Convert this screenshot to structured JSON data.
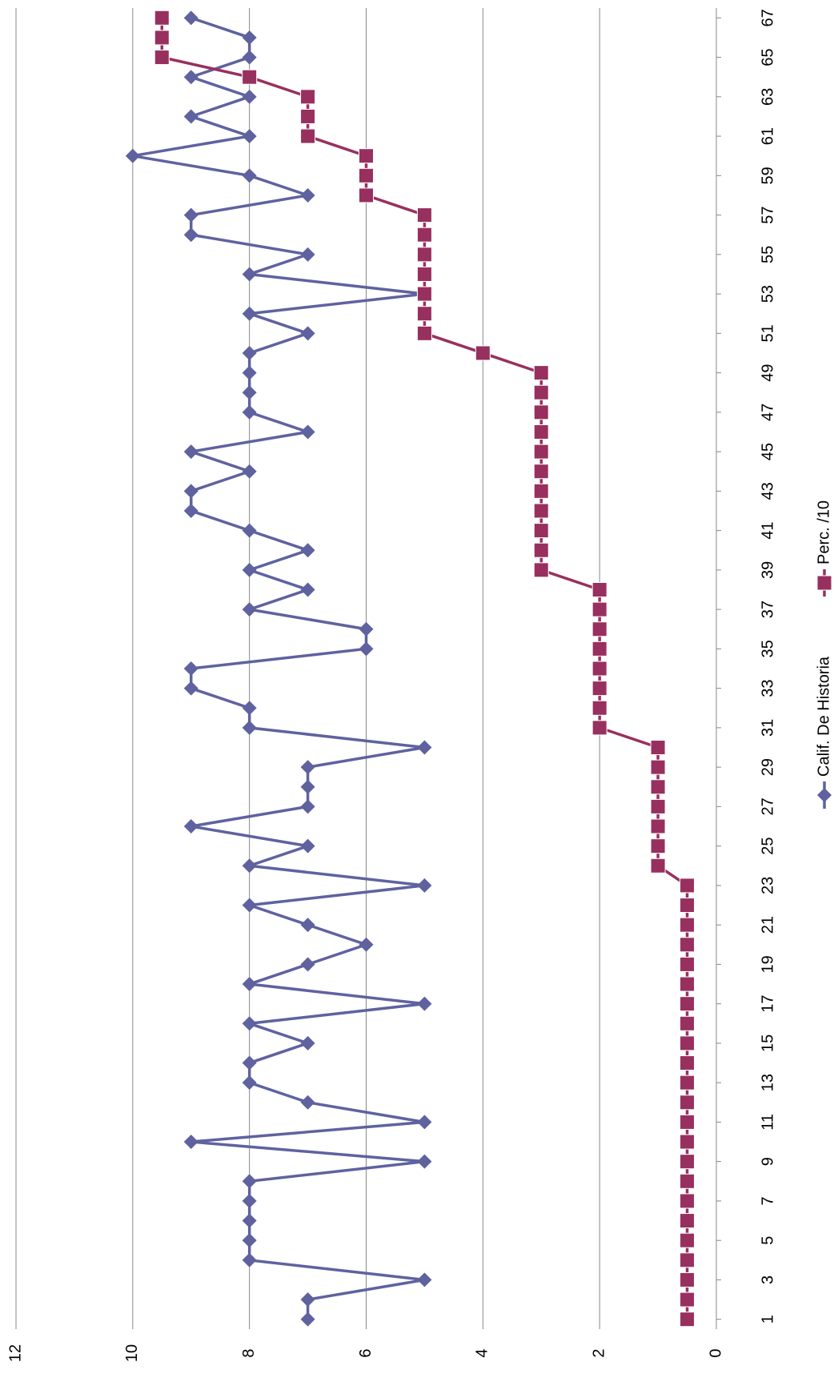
{
  "chart_data": {
    "type": "line",
    "x": [
      1,
      2,
      3,
      4,
      5,
      6,
      7,
      8,
      9,
      10,
      11,
      12,
      13,
      14,
      15,
      16,
      17,
      18,
      19,
      20,
      21,
      22,
      23,
      24,
      25,
      26,
      27,
      28,
      29,
      30,
      31,
      32,
      33,
      34,
      35,
      36,
      37,
      38,
      39,
      40,
      41,
      42,
      43,
      44,
      45,
      46,
      47,
      48,
      49,
      50,
      51,
      52,
      53,
      54,
      55,
      56,
      57,
      58,
      59,
      60,
      61,
      62,
      63,
      64,
      65,
      66,
      67
    ],
    "xlim": [
      0.5,
      67.5
    ],
    "xticks": [
      1,
      3,
      5,
      7,
      9,
      11,
      13,
      15,
      17,
      19,
      21,
      23,
      25,
      27,
      29,
      31,
      33,
      35,
      37,
      39,
      41,
      43,
      45,
      47,
      49,
      51,
      53,
      55,
      57,
      59,
      61,
      63,
      65,
      67
    ],
    "ylim": [
      0,
      12
    ],
    "yticks": [
      0,
      2,
      4,
      6,
      8,
      10,
      12
    ],
    "grid": true,
    "series": [
      {
        "name": "Calif. De Historia",
        "color": "#5f629f",
        "marker": "diamond",
        "values": [
          7,
          7,
          5,
          8,
          8,
          8,
          8,
          8,
          5,
          9,
          5,
          7,
          8,
          8,
          7,
          8,
          5,
          8,
          7,
          6,
          7,
          8,
          5,
          8,
          7,
          9,
          7,
          7,
          7,
          5,
          8,
          8,
          9,
          9,
          6,
          6,
          8,
          7,
          8,
          7,
          8,
          9,
          9,
          8,
          9,
          7,
          8,
          8,
          8,
          8,
          7,
          8,
          5,
          8,
          7,
          9,
          9,
          7,
          8,
          10,
          8,
          9,
          8,
          9,
          8,
          8,
          9
        ]
      },
      {
        "name": "Perc. /10",
        "color": "#98305f",
        "marker": "square",
        "values": [
          0.5,
          0.5,
          0.5,
          0.5,
          0.5,
          0.5,
          0.5,
          0.5,
          0.5,
          0.5,
          0.5,
          0.5,
          0.5,
          0.5,
          0.5,
          0.5,
          0.5,
          0.5,
          0.5,
          0.5,
          0.5,
          0.5,
          0.5,
          1,
          1,
          1,
          1,
          1,
          1,
          1,
          2,
          2,
          2,
          2,
          2,
          2,
          2,
          2,
          3,
          3,
          3,
          3,
          3,
          3,
          3,
          3,
          3,
          3,
          3,
          4,
          5,
          5,
          5,
          5,
          5,
          5,
          5,
          6,
          6,
          6,
          7,
          7,
          7,
          8,
          9.5,
          9.5,
          9.5
        ]
      }
    ]
  }
}
